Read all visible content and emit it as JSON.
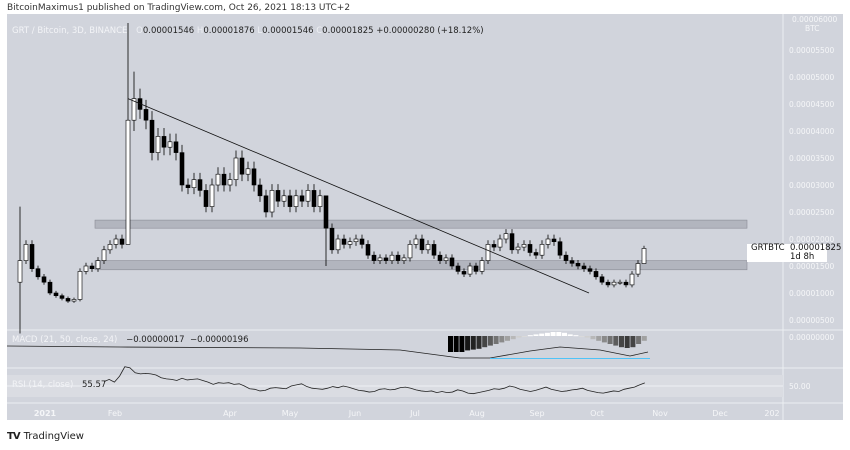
{
  "publish_line": "BitcoinMaximus1 published on TradingView.com, Oct 26, 2021 18:13 UTC+2",
  "header": {
    "symbol": "GRT / Bitcoin, 3D, BINANCE",
    "o_label": "O",
    "open": "0.00001546",
    "h_label": "H",
    "high": "0.00001876",
    "l_label": "L",
    "low": "0.00001546",
    "c_label": "C",
    "close": "0.00001825",
    "change": "+0.00000280 (+18.12%)"
  },
  "price_tag": {
    "symbol": "GRTBTC",
    "price": "0.00001825",
    "countdown": "1d 8h"
  },
  "macd": {
    "label": "MACD (21, 50, close, 24)",
    "value1": "−0.00000017",
    "value2": "−0.00000196"
  },
  "rsi": {
    "label": "RSI (14, close)",
    "value": "55.57",
    "level_label": "50.00"
  },
  "macd_axis_label": "0.00000000",
  "footer": {
    "brand": "TradingView"
  },
  "colors": {
    "background": "#d1d4dc",
    "pane_light": "#dcdee4",
    "candle_up": "#ffffff",
    "candle_down": "#000000",
    "signal": "#4fc3f7",
    "zone": "#b2b5be"
  },
  "chart_data": {
    "type": "candlestick",
    "interval": "3D",
    "unit": "BTC",
    "y_axis": {
      "ylim": [
        0,
        5.7e-05
      ],
      "ticks": [
        "0.00000500",
        "0.00001000",
        "0.00001500",
        "0.00002000",
        "0.00002500",
        "0.00003000",
        "0.00003500",
        "0.00004000",
        "0.00004500",
        "0.00005000",
        "0.00005500"
      ],
      "unit_label": "BTC",
      "top_label": "0.00006000"
    },
    "x_axis": {
      "ticks": [
        "2021",
        "Feb",
        "Apr",
        "May",
        "Jun",
        "Jul",
        "Aug",
        "Sep",
        "Oct",
        "Nov",
        "Dec",
        "202"
      ]
    },
    "closes": [
      1.6e-05,
      1.9e-05,
      1.45e-05,
      1.3e-05,
      1.2e-05,
      1e-05,
      9.5e-06,
      9e-06,
      8.5e-06,
      8.8e-06,
      1.4e-05,
      1.5e-05,
      1.45e-05,
      1.6e-05,
      1.8e-05,
      1.9e-05,
      2e-05,
      1.9e-05,
      4.2e-05,
      4.6e-05,
      4.4e-05,
      4.2e-05,
      3.6e-05,
      3.9e-05,
      3.7e-05,
      3.8e-05,
      3.6e-05,
      3e-05,
      2.95e-05,
      3.1e-05,
      2.9e-05,
      2.6e-05,
      3e-05,
      3.2e-05,
      3e-05,
      3.1e-05,
      3.5e-05,
      3.2e-05,
      3.3e-05,
      3e-05,
      2.8e-05,
      2.5e-05,
      2.9e-05,
      2.7e-05,
      2.8e-05,
      2.6e-05,
      2.8e-05,
      2.7e-05,
      2.9e-05,
      2.6e-05,
      2.8e-05,
      2.2e-05,
      1.8e-05,
      2e-05,
      1.9e-05,
      1.95e-05,
      2e-05,
      1.9e-05,
      1.7e-05,
      1.6e-05,
      1.65e-05,
      1.6e-05,
      1.7e-05,
      1.6e-05,
      1.65e-05,
      1.9e-05,
      2e-05,
      1.8e-05,
      1.9e-05,
      1.7e-05,
      1.6e-05,
      1.65e-05,
      1.5e-05,
      1.4e-05,
      1.35e-05,
      1.5e-05,
      1.4e-05,
      1.6e-05,
      1.9e-05,
      1.85e-05,
      2e-05,
      2.1e-05,
      1.8e-05,
      1.85e-05,
      1.9e-05,
      1.75e-05,
      1.7e-05,
      1.9e-05,
      2e-05,
      1.95e-05,
      1.7e-05,
      1.6e-05,
      1.55e-05,
      1.5e-05,
      1.45e-05,
      1.4e-05,
      1.3e-05,
      1.2e-05,
      1.15e-05,
      1.2e-05,
      1.2e-05,
      1.15e-05,
      1.35e-05,
      1.546e-05,
      1.825e-05
    ],
    "first_open": 1.2e-05,
    "wicks": {
      "0": [
        2.6e-05,
        2.5e-06
      ],
      "18": [
        6e-05,
        1.9e-05
      ],
      "19": [
        5.1e-05,
        4e-05
      ],
      "51": [
        2.5e-05,
        1.5e-05
      ],
      "104": [
        1.876e-05,
        1.546e-05
      ]
    },
    "zones": [
      [
        2.2e-05,
        2.35e-05
      ],
      [
        1.43e-05,
        1.6e-05
      ]
    ],
    "trendline": [
      [
        18,
        4.6e-05
      ],
      [
        94,
        1e-05
      ]
    ],
    "macd_histogram": [
      -1,
      -1,
      -1,
      -0.9,
      -0.85,
      -0.8,
      -0.7,
      -0.6,
      -0.5,
      -0.4,
      -0.3,
      -0.2,
      -0.1,
      -0.05,
      0.05,
      0.1,
      0.15,
      0.2,
      0.25,
      0.25,
      0.2,
      0.1,
      0.05,
      -0.05,
      -0.1,
      -0.2,
      -0.3,
      -0.4,
      -0.5,
      -0.6,
      -0.7,
      -0.75,
      -0.7,
      -0.5,
      -0.3
    ],
    "rsi_values": [
      58,
      62,
      57,
      68,
      85,
      83,
      74,
      72,
      73,
      72,
      70,
      65,
      63,
      62,
      60,
      64,
      61,
      62,
      63,
      60,
      57,
      53,
      56,
      55,
      56,
      53,
      54,
      50,
      45,
      44,
      41,
      42,
      46,
      47,
      46,
      45,
      50,
      52,
      54,
      49,
      46,
      45,
      44,
      46,
      49,
      47,
      50,
      48,
      45,
      42,
      41,
      39,
      40,
      44,
      45,
      43,
      44,
      47,
      48,
      46,
      43,
      41,
      40,
      41,
      38,
      40,
      38,
      39,
      43,
      41,
      37,
      36,
      38,
      40,
      42,
      45,
      44,
      46,
      50,
      48,
      44,
      42,
      40,
      42,
      45,
      48,
      44,
      42,
      40,
      41,
      43,
      44,
      46,
      42,
      40,
      38,
      37,
      39,
      41,
      40,
      44,
      46,
      48,
      52,
      55.57
    ]
  }
}
